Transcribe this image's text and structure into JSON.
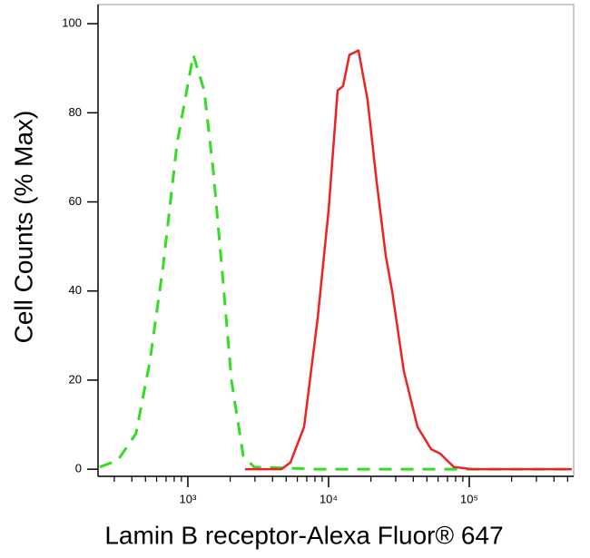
{
  "chart_data": {
    "type": "line",
    "xlabel": "Lamin B receptor-Alexa Fluor® 647",
    "ylabel": "Cell Counts (% Max)",
    "xscale": "log",
    "xlim": [
      230,
      552000
    ],
    "ylim": [
      -1.6,
      104.3
    ],
    "xticks": [
      {
        "value": 1000,
        "label": "10³"
      },
      {
        "value": 10000,
        "label": "10⁴"
      },
      {
        "value": 100000,
        "label": "10⁵"
      }
    ],
    "xminorticks": [
      300,
      400,
      500,
      600,
      700,
      800,
      900,
      2000,
      3000,
      4000,
      5000,
      6000,
      7000,
      8000,
      9000,
      20000,
      30000,
      40000,
      50000,
      60000,
      70000,
      80000,
      90000,
      200000,
      300000,
      400000,
      500000
    ],
    "yticks": [
      0,
      20,
      40,
      60,
      80,
      100
    ],
    "series": [
      {
        "name": null,
        "color": "#33dd22",
        "dashed": true,
        "x": [
          237,
          318,
          428,
          536,
          670,
          837,
          1093,
          1307,
          1516,
          1759,
          2040,
          2477,
          2958,
          8375,
          36980,
          163300,
          535800
        ],
        "values": [
          0.5,
          2,
          8,
          24,
          46,
          73,
          93,
          85,
          67,
          44,
          20,
          3,
          0.5,
          0,
          0,
          0,
          0
        ]
      },
      {
        "name": null,
        "color": "#ee2222",
        "dashed": false,
        "x": [
          2547,
          4624,
          5360,
          6700,
          8375,
          10000,
          11600,
          12680,
          14070,
          16320,
          18920,
          21970,
          25470,
          28300,
          34290,
          42870,
          53580,
          62230,
          77680,
          104400,
          535800
        ],
        "values": [
          0,
          0,
          1.5,
          9.5,
          34,
          58,
          85,
          86,
          93,
          94,
          83,
          64.5,
          48,
          40,
          22,
          9.5,
          4.5,
          3.5,
          0.5,
          0,
          0
        ]
      }
    ]
  }
}
